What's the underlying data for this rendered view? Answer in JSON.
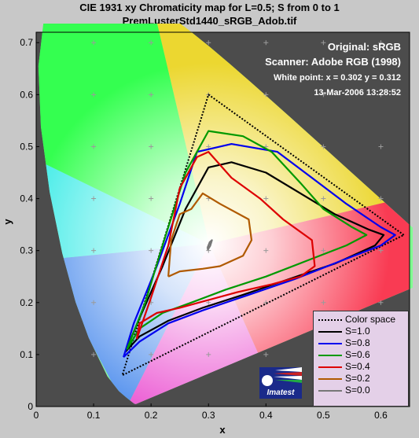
{
  "chart_data": {
    "type": "line",
    "title": "CIE 1931 xy Chromaticity map for L=0.5; S from 0 to 1",
    "subtitle": "PremLusterStd1440_sRGB_Adob.tif",
    "xlabel": "x",
    "ylabel": "y",
    "xlim": [
      0,
      0.65
    ],
    "ylim": [
      0,
      0.72
    ],
    "xticks": [
      "0",
      "0.1",
      "0.2",
      "0.3",
      "0.4",
      "0.5",
      "0.6"
    ],
    "yticks": [
      "0",
      "0.1",
      "0.2",
      "0.3",
      "0.4",
      "0.5",
      "0.6",
      "0.7"
    ],
    "grid": false,
    "legend_position": "bottom-right",
    "annotations": {
      "original": "Original: sRGB",
      "scanner": "Scanner: Adobe RGB (1998)",
      "white_point": "White point:  x = 0.302  y = 0.312",
      "date": "13-Mar-2006 13:28:52"
    },
    "series": [
      {
        "name": "Color space",
        "color": "#000000",
        "style": "dotted",
        "x": [
          0.64,
          0.3,
          0.15,
          0.64
        ],
        "y": [
          0.33,
          0.6,
          0.06,
          0.33
        ]
      },
      {
        "name": "S=1.0",
        "color": "#000000",
        "style": "solid",
        "x": [
          0.155,
          0.18,
          0.22,
          0.26,
          0.3,
          0.34,
          0.4,
          0.46,
          0.52,
          0.58,
          0.605,
          0.59,
          0.52,
          0.44,
          0.36,
          0.29,
          0.23,
          0.18,
          0.155
        ],
        "y": [
          0.105,
          0.17,
          0.27,
          0.38,
          0.46,
          0.47,
          0.45,
          0.41,
          0.37,
          0.34,
          0.33,
          0.31,
          0.275,
          0.245,
          0.215,
          0.19,
          0.165,
          0.135,
          0.105
        ]
      },
      {
        "name": "S=0.8",
        "color": "#0000ee",
        "style": "solid",
        "x": [
          0.152,
          0.17,
          0.21,
          0.25,
          0.28,
          0.34,
          0.42,
          0.48,
          0.54,
          0.6,
          0.625,
          0.6,
          0.53,
          0.45,
          0.37,
          0.29,
          0.23,
          0.18,
          0.152
        ],
        "y": [
          0.095,
          0.16,
          0.27,
          0.39,
          0.49,
          0.505,
          0.49,
          0.44,
          0.39,
          0.345,
          0.33,
          0.31,
          0.28,
          0.245,
          0.215,
          0.185,
          0.16,
          0.125,
          0.095
        ]
      },
      {
        "name": "S=0.6",
        "color": "#009900",
        "style": "solid",
        "x": [
          0.158,
          0.19,
          0.22,
          0.26,
          0.3,
          0.36,
          0.41,
          0.46,
          0.5,
          0.55,
          0.575,
          0.54,
          0.47,
          0.4,
          0.33,
          0.27,
          0.22,
          0.18,
          0.158
        ],
        "y": [
          0.11,
          0.2,
          0.31,
          0.45,
          0.53,
          0.52,
          0.49,
          0.43,
          0.38,
          0.345,
          0.33,
          0.31,
          0.28,
          0.25,
          0.225,
          0.2,
          0.18,
          0.15,
          0.11
        ]
      },
      {
        "name": "S=0.4",
        "color": "#dd0000",
        "style": "solid",
        "x": [
          0.175,
          0.2,
          0.23,
          0.25,
          0.28,
          0.3,
          0.34,
          0.39,
          0.43,
          0.48,
          0.485,
          0.46,
          0.41,
          0.35,
          0.3,
          0.25,
          0.21,
          0.18,
          0.175
        ],
        "y": [
          0.13,
          0.21,
          0.31,
          0.42,
          0.48,
          0.49,
          0.44,
          0.4,
          0.36,
          0.32,
          0.27,
          0.25,
          0.235,
          0.22,
          0.205,
          0.19,
          0.18,
          0.16,
          0.13
        ]
      },
      {
        "name": "S=0.2",
        "color": "#b05a00",
        "style": "solid",
        "x": [
          0.23,
          0.235,
          0.25,
          0.27,
          0.29,
          0.32,
          0.37,
          0.375,
          0.36,
          0.32,
          0.29,
          0.25,
          0.23
        ],
        "y": [
          0.25,
          0.32,
          0.37,
          0.38,
          0.41,
          0.39,
          0.36,
          0.32,
          0.29,
          0.27,
          0.265,
          0.26,
          0.25
        ]
      },
      {
        "name": "S=0.0",
        "color": "#777777",
        "style": "solid",
        "x": [
          0.298,
          0.302,
          0.306,
          0.303,
          0.299,
          0.298
        ],
        "y": [
          0.305,
          0.316,
          0.32,
          0.309,
          0.302,
          0.305
        ]
      }
    ]
  },
  "logo": {
    "text": "Imatest"
  }
}
